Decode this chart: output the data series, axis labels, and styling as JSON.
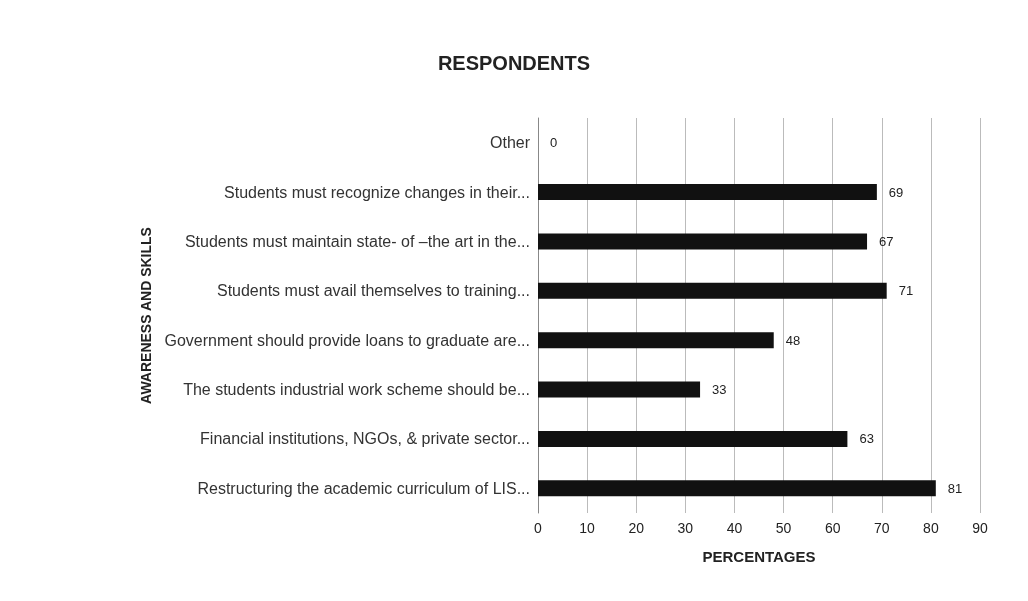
{
  "chart_data": {
    "type": "bar",
    "orientation": "horizontal",
    "title": "RESPONDENTS",
    "xlabel": "PERCENTAGES",
    "ylabel": "AWARENESS AND SKILLS",
    "categories": [
      "Other",
      "Students must recognize changes in their...",
      "Students must maintain state- of –the art in the...",
      "Students must avail themselves to training...",
      "Government should provide loans to graduate are...",
      "The students industrial work scheme should be...",
      "Financial institutions, NGOs, & private sector...",
      "Restructuring the academic curriculum of LIS..."
    ],
    "values": [
      0,
      69,
      67,
      71,
      48,
      33,
      63,
      81
    ],
    "color": "#111111",
    "xlim": [
      0,
      90
    ],
    "xticks": [
      0,
      10,
      20,
      30,
      40,
      50,
      60,
      70,
      80,
      90
    ],
    "grid": "x",
    "data_labels": true
  }
}
